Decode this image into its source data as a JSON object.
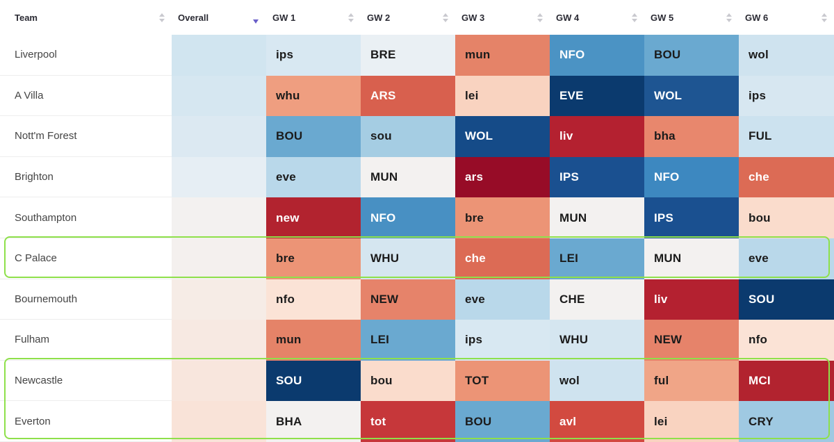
{
  "table": {
    "headers": {
      "team": "Team",
      "overall": "Overall",
      "gameweeks": [
        "GW 1",
        "GW 2",
        "GW 3",
        "GW 4",
        "GW 5",
        "GW 6"
      ]
    },
    "sort": {
      "column": "Overall",
      "direction": "descending"
    },
    "rows": [
      {
        "team": "Liverpool",
        "overall_color": "#d1e5f0",
        "fixtures": [
          {
            "opp": "ips",
            "color": "#d8e8f2",
            "text": "#1b1b1b"
          },
          {
            "opp": "BRE",
            "color": "#eaf0f4",
            "text": "#1b1b1b"
          },
          {
            "opp": "mun",
            "color": "#e58368",
            "text": "#1b1b1b"
          },
          {
            "opp": "NFO",
            "color": "#4b93c4",
            "text": "#ffffff"
          },
          {
            "opp": "BOU",
            "color": "#6aa9d0",
            "text": "#1b1b1b"
          },
          {
            "opp": "wol",
            "color": "#cfe3ef",
            "text": "#1b1b1b"
          }
        ]
      },
      {
        "team": "A Villa",
        "overall_color": "#d6e7f1",
        "fixtures": [
          {
            "opp": "whu",
            "color": "#ef9e80",
            "text": "#1b1b1b"
          },
          {
            "opp": "ARS",
            "color": "#d8604e",
            "text": "#ffffff"
          },
          {
            "opp": "lei",
            "color": "#f9d3c0",
            "text": "#1b1b1b"
          },
          {
            "opp": "EVE",
            "color": "#0b3a6e",
            "text": "#ffffff"
          },
          {
            "opp": "WOL",
            "color": "#1e5592",
            "text": "#ffffff"
          },
          {
            "opp": "ips",
            "color": "#d7e7f1",
            "text": "#1b1b1b"
          }
        ]
      },
      {
        "team": "Nott'm Forest",
        "overall_color": "#dce9f2",
        "fixtures": [
          {
            "opp": "BOU",
            "color": "#6aa9d0",
            "text": "#1b1b1b"
          },
          {
            "opp": "sou",
            "color": "#a5cde3",
            "text": "#1b1b1b"
          },
          {
            "opp": "WOL",
            "color": "#154b88",
            "text": "#ffffff"
          },
          {
            "opp": "liv",
            "color": "#b42130",
            "text": "#ffffff"
          },
          {
            "opp": "bha",
            "color": "#e8876d",
            "text": "#1b1b1b"
          },
          {
            "opp": "FUL",
            "color": "#cce2ef",
            "text": "#1b1b1b"
          }
        ]
      },
      {
        "team": "Brighton",
        "overall_color": "#e6eef4",
        "fixtures": [
          {
            "opp": "eve",
            "color": "#b9d8ea",
            "text": "#1b1b1b"
          },
          {
            "opp": "MUN",
            "color": "#f3f1f0",
            "text": "#1b1b1b"
          },
          {
            "opp": "ars",
            "color": "#970c27",
            "text": "#ffffff"
          },
          {
            "opp": "IPS",
            "color": "#1a5090",
            "text": "#ffffff"
          },
          {
            "opp": "NFO",
            "color": "#3d88c0",
            "text": "#ffffff"
          },
          {
            "opp": "che",
            "color": "#dc6b55",
            "text": "#ffffff"
          }
        ]
      },
      {
        "team": "Southampton",
        "overall_color": "#f3f1f0",
        "fixtures": [
          {
            "opp": "new",
            "color": "#b2232f",
            "text": "#ffffff"
          },
          {
            "opp": "NFO",
            "color": "#4890c3",
            "text": "#ffffff"
          },
          {
            "opp": "bre",
            "color": "#ec9476",
            "text": "#1b1b1b"
          },
          {
            "opp": "MUN",
            "color": "#f3f1f0",
            "text": "#1b1b1b"
          },
          {
            "opp": "IPS",
            "color": "#1a5090",
            "text": "#ffffff"
          },
          {
            "opp": "bou",
            "color": "#fadccc",
            "text": "#1b1b1b"
          }
        ]
      },
      {
        "team": "C Palace",
        "overall_color": "#f4f0ee",
        "fixtures": [
          {
            "opp": "bre",
            "color": "#ec9476",
            "text": "#1b1b1b"
          },
          {
            "opp": "WHU",
            "color": "#d5e6f0",
            "text": "#1b1b1b"
          },
          {
            "opp": "che",
            "color": "#dc6b55",
            "text": "#ffffff"
          },
          {
            "opp": "LEI",
            "color": "#6aa9d0",
            "text": "#1b1b1b"
          },
          {
            "opp": "MUN",
            "color": "#f3f1f0",
            "text": "#1b1b1b"
          },
          {
            "opp": "eve",
            "color": "#b9d8ea",
            "text": "#1b1b1b"
          }
        ]
      },
      {
        "team": "Bournemouth",
        "overall_color": "#f6ece6",
        "fixtures": [
          {
            "opp": "nfo",
            "color": "#fbe3d6",
            "text": "#1b1b1b"
          },
          {
            "opp": "NEW",
            "color": "#e6836a",
            "text": "#1b1b1b"
          },
          {
            "opp": "eve",
            "color": "#b9d8ea",
            "text": "#1b1b1b"
          },
          {
            "opp": "CHE",
            "color": "#f3f1f0",
            "text": "#1b1b1b"
          },
          {
            "opp": "liv",
            "color": "#b42130",
            "text": "#ffffff"
          },
          {
            "opp": "SOU",
            "color": "#0b3a6e",
            "text": "#ffffff"
          }
        ]
      },
      {
        "team": "Fulham",
        "overall_color": "#f7e9e2",
        "fixtures": [
          {
            "opp": "mun",
            "color": "#e58368",
            "text": "#1b1b1b"
          },
          {
            "opp": "LEI",
            "color": "#6aa9d0",
            "text": "#1b1b1b"
          },
          {
            "opp": "ips",
            "color": "#d8e8f2",
            "text": "#1b1b1b"
          },
          {
            "opp": "WHU",
            "color": "#d5e6f0",
            "text": "#1b1b1b"
          },
          {
            "opp": "NEW",
            "color": "#e6836a",
            "text": "#1b1b1b"
          },
          {
            "opp": "nfo",
            "color": "#fbe3d6",
            "text": "#1b1b1b"
          }
        ]
      },
      {
        "team": "Newcastle",
        "overall_color": "#f8e6dd",
        "fixtures": [
          {
            "opp": "SOU",
            "color": "#0b3a6e",
            "text": "#ffffff"
          },
          {
            "opp": "bou",
            "color": "#fadccc",
            "text": "#1b1b1b"
          },
          {
            "opp": "TOT",
            "color": "#ec9476",
            "text": "#1b1b1b"
          },
          {
            "opp": "wol",
            "color": "#cfe3ef",
            "text": "#1b1b1b"
          },
          {
            "opp": "ful",
            "color": "#f0a587",
            "text": "#1b1b1b"
          },
          {
            "opp": "MCI",
            "color": "#b2232f",
            "text": "#ffffff"
          }
        ]
      },
      {
        "team": "Everton",
        "overall_color": "#f9e3d8",
        "fixtures": [
          {
            "opp": "BHA",
            "color": "#f3f1f0",
            "text": "#1b1b1b"
          },
          {
            "opp": "tot",
            "color": "#c6373a",
            "text": "#ffffff"
          },
          {
            "opp": "BOU",
            "color": "#6aa9d0",
            "text": "#1b1b1b"
          },
          {
            "opp": "avl",
            "color": "#d24a40",
            "text": "#ffffff"
          },
          {
            "opp": "lei",
            "color": "#f9d3c0",
            "text": "#1b1b1b"
          },
          {
            "opp": "CRY",
            "color": "#9fc9e2",
            "text": "#1b1b1b"
          }
        ]
      }
    ]
  },
  "highlight_color": "#8ee04a",
  "sort_active_color": "#6a5fc9"
}
